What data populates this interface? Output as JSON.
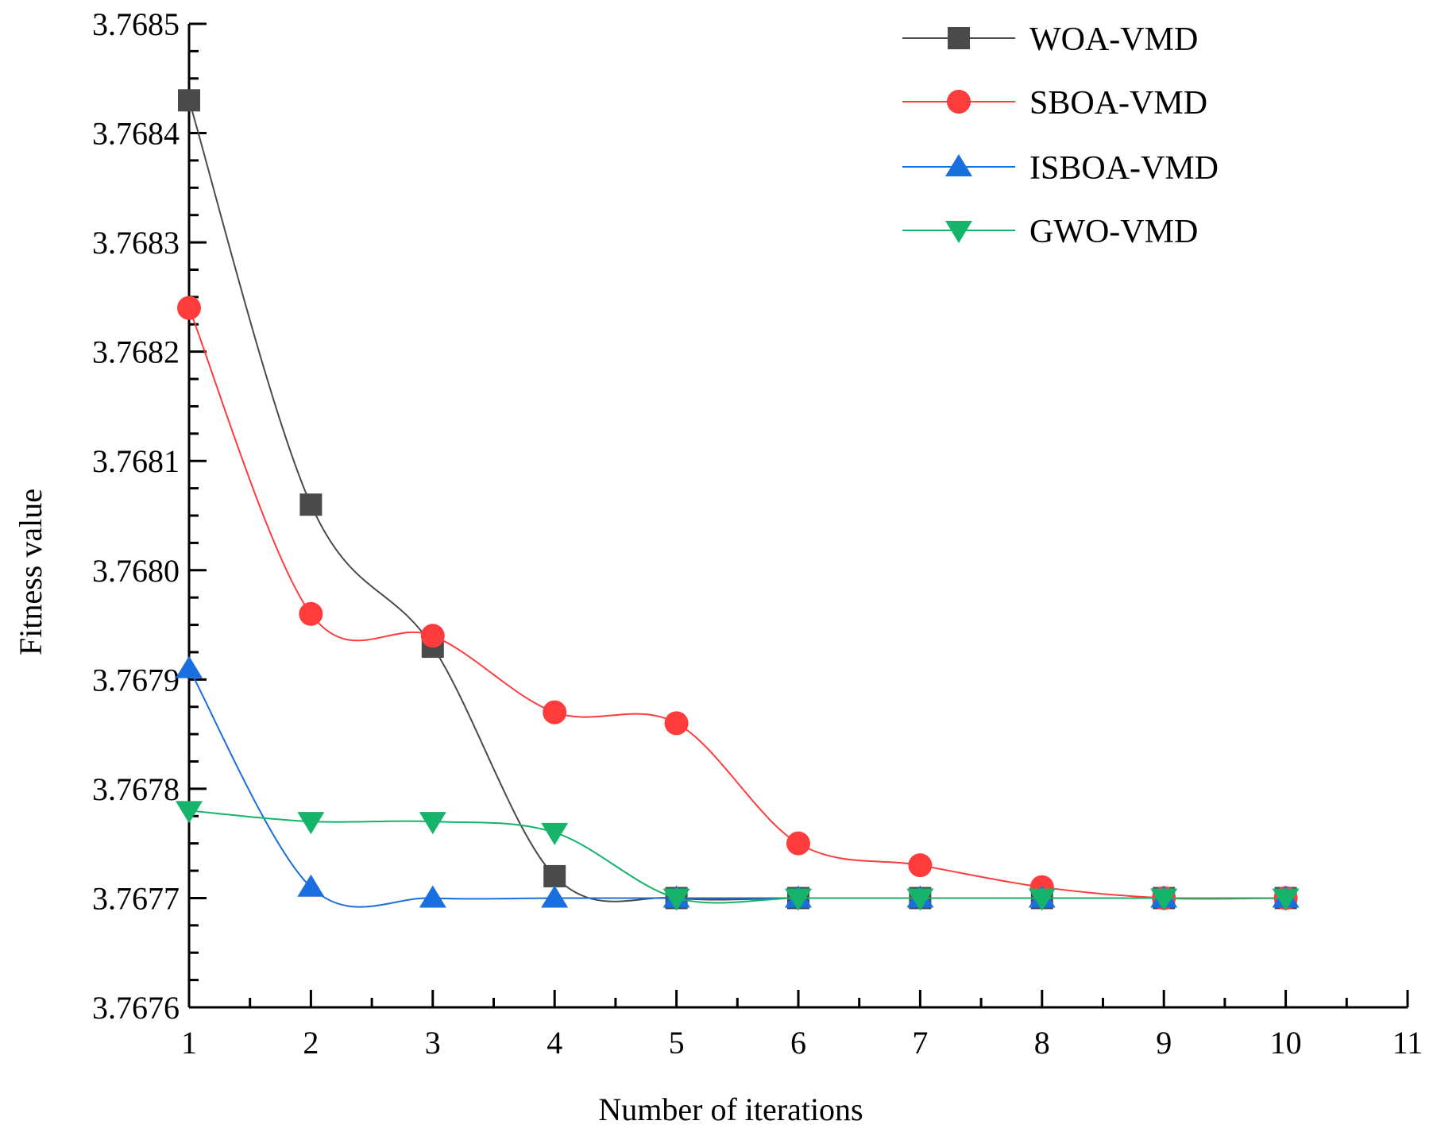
{
  "chart_data": {
    "type": "line",
    "title": "",
    "xlabel": "Number of iterations",
    "ylabel": "Fitness value",
    "xlim": [
      1,
      11
    ],
    "ylim": [
      3.7676,
      3.7685
    ],
    "x_ticks": [
      "1",
      "2",
      "3",
      "4",
      "5",
      "6",
      "7",
      "8",
      "9",
      "10",
      "11"
    ],
    "y_ticks": [
      "3.7676",
      "3.7677",
      "3.7678",
      "3.7679",
      "3.7680",
      "3.7681",
      "3.7682",
      "3.7683",
      "3.7684",
      "3.7685"
    ],
    "grid": false,
    "legend_position": "top-right",
    "x": [
      1,
      2,
      3,
      4,
      5,
      6,
      7,
      8,
      9,
      10
    ],
    "series": [
      {
        "name": "WOA-VMD",
        "color": "#4a4a4a",
        "marker": "square",
        "values": [
          3.76843,
          3.76806,
          3.76793,
          3.76772,
          3.7677,
          3.7677,
          3.7677,
          3.7677,
          3.7677,
          3.7677
        ]
      },
      {
        "name": "SBOA-VMD",
        "color": "#ff3b3b",
        "marker": "circle",
        "values": [
          3.76824,
          3.76796,
          3.76794,
          3.76787,
          3.76786,
          3.76775,
          3.76773,
          3.76771,
          3.7677,
          3.7677
        ]
      },
      {
        "name": "ISBOA-VMD",
        "color": "#1a6fe0",
        "marker": "triangle-up",
        "values": [
          3.76791,
          3.76771,
          3.7677,
          3.7677,
          3.7677,
          3.7677,
          3.7677,
          3.7677,
          3.7677,
          3.7677
        ]
      },
      {
        "name": "GWO-VMD",
        "color": "#16b36a",
        "marker": "triangle-down",
        "values": [
          3.76778,
          3.76777,
          3.76777,
          3.76776,
          3.7677,
          3.7677,
          3.7677,
          3.7677,
          3.7677,
          3.7677
        ]
      }
    ]
  }
}
